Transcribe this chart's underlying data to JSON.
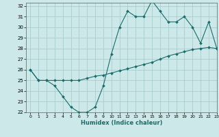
{
  "xlabel": "Humidex (Indice chaleur)",
  "bg_color": "#cce8e8",
  "grid_color": "#aacccc",
  "line_color": "#1a6b6b",
  "line1_x": [
    0,
    1,
    2,
    3,
    4,
    5,
    6,
    7,
    8,
    9,
    10,
    11,
    12,
    13,
    14,
    15,
    16,
    17,
    18,
    19,
    20,
    21,
    22,
    23
  ],
  "line1_y": [
    26,
    25,
    25,
    24.5,
    23.5,
    22.5,
    22,
    22,
    22.5,
    24.5,
    27.5,
    30,
    31.5,
    31,
    31,
    32.5,
    31.5,
    30.5,
    30.5,
    31,
    30,
    28.5,
    30.5,
    28
  ],
  "line2_x": [
    0,
    1,
    2,
    3,
    4,
    5,
    6,
    7,
    8,
    9,
    10,
    11,
    12,
    13,
    14,
    15,
    16,
    17,
    18,
    19,
    20,
    21,
    22,
    23
  ],
  "line2_y": [
    26,
    25,
    25,
    25,
    25,
    25,
    25,
    25.2,
    25.4,
    25.5,
    25.7,
    25.9,
    26.1,
    26.3,
    26.5,
    26.7,
    27.0,
    27.3,
    27.5,
    27.7,
    27.9,
    28.0,
    28.1,
    28.0
  ],
  "ylim": [
    22,
    32
  ],
  "xlim": [
    -0.5,
    23
  ],
  "yticks": [
    22,
    23,
    24,
    25,
    26,
    27,
    28,
    29,
    30,
    31,
    32
  ],
  "xticks": [
    0,
    1,
    2,
    3,
    4,
    5,
    6,
    7,
    8,
    9,
    10,
    11,
    12,
    13,
    14,
    15,
    16,
    17,
    18,
    19,
    20,
    21,
    22,
    23
  ],
  "markersize": 2.0
}
